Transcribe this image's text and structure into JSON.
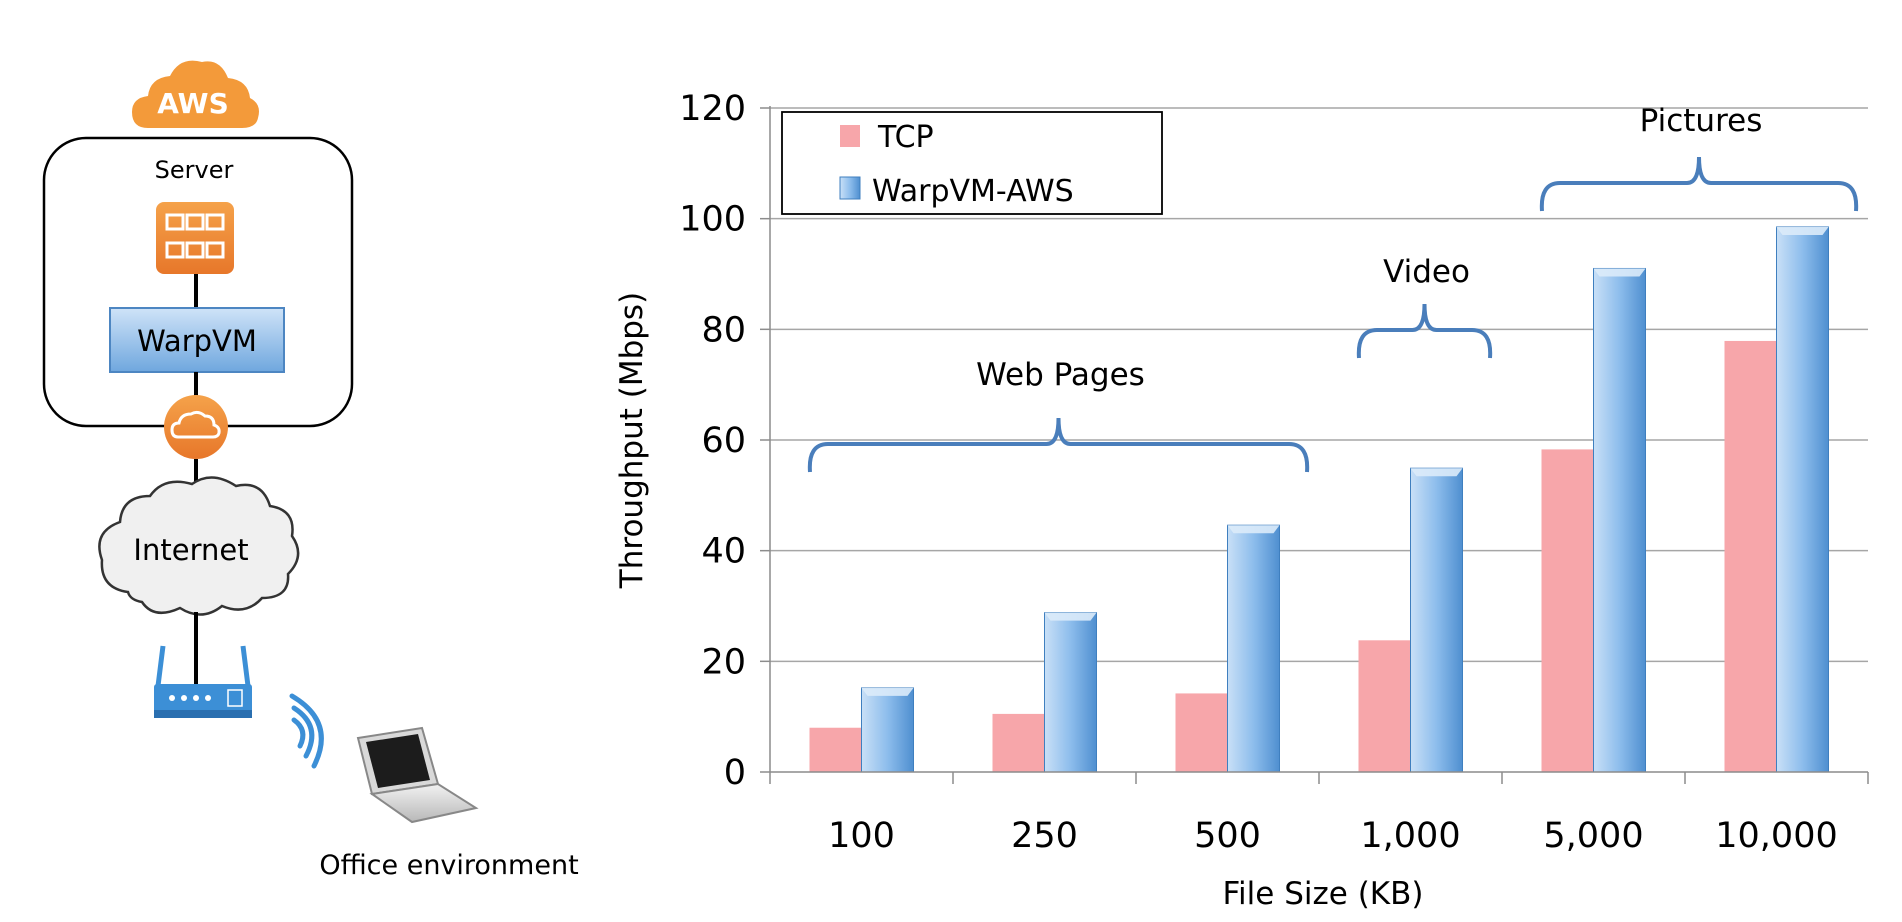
{
  "diagram": {
    "cloud_provider": "AWS",
    "server_label": "Server",
    "vm_label": "WarpVM",
    "internet_label": "Internet",
    "office_label": "Office environment",
    "icons": [
      "aws-cloud-icon",
      "firewall-grid-icon",
      "gateway-cloud-icon",
      "internet-cloud-icon",
      "router-icon",
      "wifi-signal-icon",
      "laptop-icon"
    ]
  },
  "chart_data": {
    "type": "bar",
    "title": "",
    "xlabel": "File Size (KB)",
    "ylabel": "Throughput (Mbps)",
    "ylim": [
      0,
      120
    ],
    "yticks": [
      0,
      20,
      40,
      60,
      80,
      100,
      120
    ],
    "grid": true,
    "legend_position": "top-left",
    "categories": [
      "100",
      "250",
      "500",
      "1,000",
      "5,000",
      "10,000"
    ],
    "series": [
      {
        "name": "TCP",
        "color": "#f7a6aa",
        "values": [
          8,
          10.5,
          14.2,
          23.8,
          58.3,
          77.9
        ]
      },
      {
        "name": "WarpVM-AWS",
        "color": "#6fa7de",
        "values": [
          15.2,
          28.8,
          44.6,
          54.9,
          91.0,
          98.5
        ]
      }
    ],
    "annotations": [
      {
        "text": "Web Pages",
        "from_category": 0,
        "to_category": 2
      },
      {
        "text": "Video",
        "from_category": 3,
        "to_category": 3
      },
      {
        "text": "Pictures",
        "from_category": 4,
        "to_category": 5
      }
    ]
  }
}
